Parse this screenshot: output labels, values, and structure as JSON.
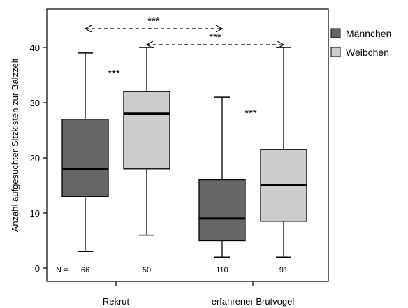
{
  "chart_data": {
    "type": "boxplot",
    "ylabel": "Anzahl aufgesuchter Sitzkisten zur Balzzeit",
    "xlabel": "",
    "ylim": [
      -1,
      47
    ],
    "yticks": [
      0,
      10,
      20,
      30,
      40
    ],
    "categories": [
      "Rekrut",
      "erfahrener Brutvogel"
    ],
    "series": [
      {
        "name": "Männchen",
        "color": "#666666",
        "boxes": [
          {
            "category": "Rekrut",
            "min": 3,
            "q1": 13,
            "median": 18,
            "q3": 27,
            "max": 39,
            "n": "66"
          },
          {
            "category": "erfahrener Brutvogel",
            "min": 2,
            "q1": 5,
            "median": 9,
            "q3": 16,
            "max": 31,
            "n": "110"
          }
        ]
      },
      {
        "name": "Weibchen",
        "color": "#cccccc",
        "boxes": [
          {
            "category": "Rekrut",
            "min": 6,
            "q1": 18,
            "median": 28,
            "q3": 32,
            "max": 40,
            "n": "50"
          },
          {
            "category": "erfahrener Brutvogel",
            "min": 2,
            "q1": 8.5,
            "median": 15,
            "q3": 21.5,
            "max": 40,
            "n": "91"
          }
        ]
      }
    ],
    "n_prefix": "N =",
    "significance": [
      {
        "label": "***",
        "kind": "within",
        "category": "Rekrut"
      },
      {
        "label": "***",
        "kind": "within",
        "category": "erfahrener Brutvogel"
      },
      {
        "label": "***",
        "kind": "between",
        "series": "Männchen"
      },
      {
        "label": "***",
        "kind": "between",
        "series": "Weibchen"
      }
    ],
    "legend": {
      "position": "right",
      "entries": [
        "Männchen",
        "Weibchen"
      ]
    }
  }
}
